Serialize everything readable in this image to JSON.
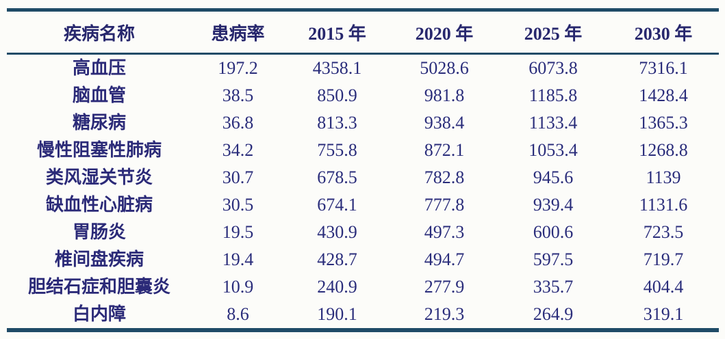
{
  "table": {
    "columns": [
      "疾病名称",
      "患病率",
      "2015 年",
      "2020 年",
      "2025 年",
      "2030 年"
    ],
    "rows": [
      {
        "name": "高血压",
        "values": [
          "197.2",
          "4358.1",
          "5028.6",
          "6073.8",
          "7316.1"
        ]
      },
      {
        "name": "脑血管",
        "values": [
          "38.5",
          "850.9",
          "981.8",
          "1185.8",
          "1428.4"
        ]
      },
      {
        "name": "糖尿病",
        "values": [
          "36.8",
          "813.3",
          "938.4",
          "1133.4",
          "1365.3"
        ]
      },
      {
        "name": "慢性阻塞性肺病",
        "values": [
          "34.2",
          "755.8",
          "872.1",
          "1053.4",
          "1268.8"
        ]
      },
      {
        "name": "类风湿关节炎",
        "values": [
          "30.7",
          "678.5",
          "782.8",
          "945.6",
          "1139"
        ]
      },
      {
        "name": "缺血性心脏病",
        "values": [
          "30.5",
          "674.1",
          "777.8",
          "939.4",
          "1131.6"
        ]
      },
      {
        "name": "胃肠炎",
        "values": [
          "19.5",
          "430.9",
          "497.3",
          "600.6",
          "723.5"
        ]
      },
      {
        "name": "椎间盘疾病",
        "values": [
          "19.4",
          "428.7",
          "494.7",
          "597.5",
          "719.7"
        ]
      },
      {
        "name": "胆结石症和胆囊炎",
        "values": [
          "10.9",
          "240.9",
          "277.9",
          "335.7",
          "404.4"
        ]
      },
      {
        "name": "白内障",
        "values": [
          "8.6",
          "190.1",
          "219.3",
          "264.9",
          "319.1"
        ]
      }
    ]
  },
  "colors": {
    "text": "#2a2d7b",
    "header_text": "#27276d",
    "rule": "#1f4b67",
    "background": "#fcfcf9"
  }
}
